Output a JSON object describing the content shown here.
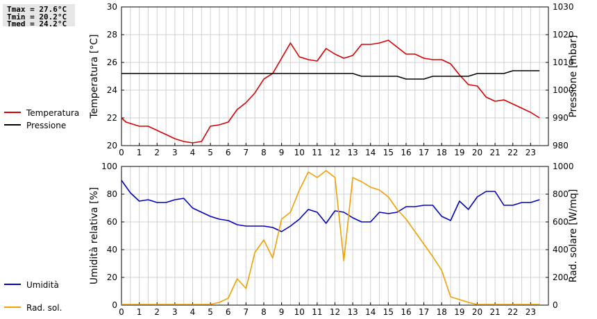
{
  "stats": {
    "tmax": "Tmax = 27.6°C",
    "tmin": "Tmin = 20.2°C",
    "tmed": "Tmed = 24.2°C"
  },
  "colors": {
    "temperature": "#d40000",
    "pressure": "#000000",
    "humidity": "#0000c0",
    "radiation": "#f0a000",
    "grid": "#d0d0d0"
  },
  "chart_data": [
    {
      "type": "line",
      "xlim": [
        0,
        24
      ],
      "xticks": [
        0,
        1,
        2,
        3,
        4,
        5,
        6,
        7,
        8,
        9,
        10,
        11,
        12,
        13,
        14,
        15,
        16,
        17,
        18,
        19,
        20,
        21,
        22,
        23
      ],
      "ylabel_left": "Temperatura [°C]",
      "ylim_left": [
        20,
        30
      ],
      "yticks_left": [
        20,
        22,
        24,
        26,
        28,
        30
      ],
      "ylabel_right": "Pressione [mbar]",
      "ylim_right": [
        980,
        1030
      ],
      "yticks_right": [
        980,
        990,
        1000,
        1010,
        1020,
        1030
      ],
      "grid": true,
      "legend_position": "left",
      "series": [
        {
          "name": "Temperatura",
          "axis": "left",
          "color": "#d40000",
          "points": [
            [
              0,
              22.0
            ],
            [
              0.25,
              21.7
            ],
            [
              0.5,
              21.6
            ],
            [
              1,
              21.4
            ],
            [
              1.5,
              21.4
            ],
            [
              2,
              21.1
            ],
            [
              2.5,
              20.8
            ],
            [
              3,
              20.5
            ],
            [
              3.5,
              20.3
            ],
            [
              4,
              20.2
            ],
            [
              4.5,
              20.3
            ],
            [
              5,
              21.4
            ],
            [
              5.5,
              21.5
            ],
            [
              6,
              21.7
            ],
            [
              6.5,
              22.6
            ],
            [
              7,
              23.1
            ],
            [
              7.5,
              23.8
            ],
            [
              8,
              24.8
            ],
            [
              8.5,
              25.2
            ],
            [
              9,
              26.3
            ],
            [
              9.5,
              27.4
            ],
            [
              10,
              26.4
            ],
            [
              10.5,
              26.2
            ],
            [
              11,
              26.1
            ],
            [
              11.5,
              27.0
            ],
            [
              12,
              26.6
            ],
            [
              12.5,
              26.3
            ],
            [
              13,
              26.5
            ],
            [
              13.5,
              27.3
            ],
            [
              14,
              27.3
            ],
            [
              14.5,
              27.4
            ],
            [
              15,
              27.6
            ],
            [
              15.5,
              27.1
            ],
            [
              16,
              26.6
            ],
            [
              16.5,
              26.6
            ],
            [
              17,
              26.3
            ],
            [
              17.5,
              26.2
            ],
            [
              18,
              26.2
            ],
            [
              18.5,
              25.9
            ],
            [
              19,
              25.1
            ],
            [
              19.5,
              24.4
            ],
            [
              20,
              24.3
            ],
            [
              20.5,
              23.5
            ],
            [
              21,
              23.2
            ],
            [
              21.5,
              23.3
            ],
            [
              22,
              23.0
            ],
            [
              22.5,
              22.7
            ],
            [
              23,
              22.4
            ],
            [
              23.5,
              22.0
            ]
          ]
        },
        {
          "name": "Pressione",
          "axis": "right",
          "color": "#000000",
          "points": [
            [
              0,
              1006
            ],
            [
              13,
              1006
            ],
            [
              13.5,
              1005
            ],
            [
              15,
              1005
            ],
            [
              15.5,
              1005
            ],
            [
              16,
              1004
            ],
            [
              17,
              1004
            ],
            [
              17.5,
              1005
            ],
            [
              19,
              1005
            ],
            [
              19.5,
              1005
            ],
            [
              20,
              1006
            ],
            [
              21.5,
              1006
            ],
            [
              22,
              1007
            ],
            [
              23.5,
              1007
            ]
          ]
        }
      ]
    },
    {
      "type": "line",
      "xlim": [
        0,
        24
      ],
      "xticks": [
        0,
        1,
        2,
        3,
        4,
        5,
        6,
        7,
        8,
        9,
        10,
        11,
        12,
        13,
        14,
        15,
        16,
        17,
        18,
        19,
        20,
        21,
        22,
        23
      ],
      "ylabel_left": "Umidità relativa [%]",
      "ylim_left": [
        0,
        100
      ],
      "yticks_left": [
        0,
        20,
        40,
        60,
        80,
        100
      ],
      "ylabel_right": "Rad. solare [W/mq]",
      "ylim_right": [
        0,
        1000
      ],
      "yticks_right": [
        0,
        200,
        400,
        600,
        800,
        1000
      ],
      "grid": true,
      "legend_position": "left",
      "series": [
        {
          "name": "Umidità",
          "axis": "left",
          "color": "#0000c0",
          "points": [
            [
              0,
              90
            ],
            [
              0.5,
              81
            ],
            [
              1,
              75
            ],
            [
              1.5,
              76
            ],
            [
              2,
              74
            ],
            [
              2.5,
              74
            ],
            [
              3,
              76
            ],
            [
              3.5,
              77
            ],
            [
              4,
              70
            ],
            [
              4.5,
              67
            ],
            [
              5,
              64
            ],
            [
              5.5,
              62
            ],
            [
              6,
              61
            ],
            [
              6.5,
              58
            ],
            [
              7,
              57
            ],
            [
              7.5,
              57
            ],
            [
              8,
              57
            ],
            [
              8.5,
              56
            ],
            [
              9,
              53
            ],
            [
              9.5,
              57
            ],
            [
              10,
              62
            ],
            [
              10.5,
              69
            ],
            [
              11,
              67
            ],
            [
              11.5,
              59
            ],
            [
              12,
              68
            ],
            [
              12.5,
              67
            ],
            [
              13,
              63
            ],
            [
              13.5,
              60
            ],
            [
              14,
              60
            ],
            [
              14.5,
              67
            ],
            [
              15,
              66
            ],
            [
              15.5,
              67
            ],
            [
              16,
              71
            ],
            [
              16.5,
              71
            ],
            [
              17,
              72
            ],
            [
              17.5,
              72
            ],
            [
              18,
              64
            ],
            [
              18.5,
              61
            ],
            [
              19,
              75
            ],
            [
              19.5,
              69
            ],
            [
              20,
              78
            ],
            [
              20.5,
              82
            ],
            [
              21,
              82
            ],
            [
              21.5,
              72
            ],
            [
              22,
              72
            ],
            [
              22.5,
              74
            ],
            [
              23,
              74
            ],
            [
              23.5,
              76
            ]
          ]
        },
        {
          "name": "Rad. sol.",
          "axis": "right",
          "color": "#f0a000",
          "points": [
            [
              0,
              5
            ],
            [
              5,
              5
            ],
            [
              5.5,
              20
            ],
            [
              6,
              50
            ],
            [
              6.5,
              190
            ],
            [
              7,
              120
            ],
            [
              7.5,
              380
            ],
            [
              8,
              470
            ],
            [
              8.5,
              340
            ],
            [
              9,
              620
            ],
            [
              9.5,
              670
            ],
            [
              10,
              830
            ],
            [
              10.5,
              960
            ],
            [
              11,
              920
            ],
            [
              11.5,
              970
            ],
            [
              12,
              920
            ],
            [
              12.5,
              320
            ],
            [
              13,
              920
            ],
            [
              13.5,
              890
            ],
            [
              14,
              850
            ],
            [
              14.5,
              830
            ],
            [
              15,
              780
            ],
            [
              15.5,
              690
            ],
            [
              16,
              620
            ],
            [
              16.5,
              530
            ],
            [
              17,
              440
            ],
            [
              17.5,
              350
            ],
            [
              18,
              250
            ],
            [
              18.5,
              60
            ],
            [
              19,
              40
            ],
            [
              19.5,
              20
            ],
            [
              20,
              5
            ],
            [
              23.5,
              5
            ]
          ]
        }
      ]
    }
  ]
}
